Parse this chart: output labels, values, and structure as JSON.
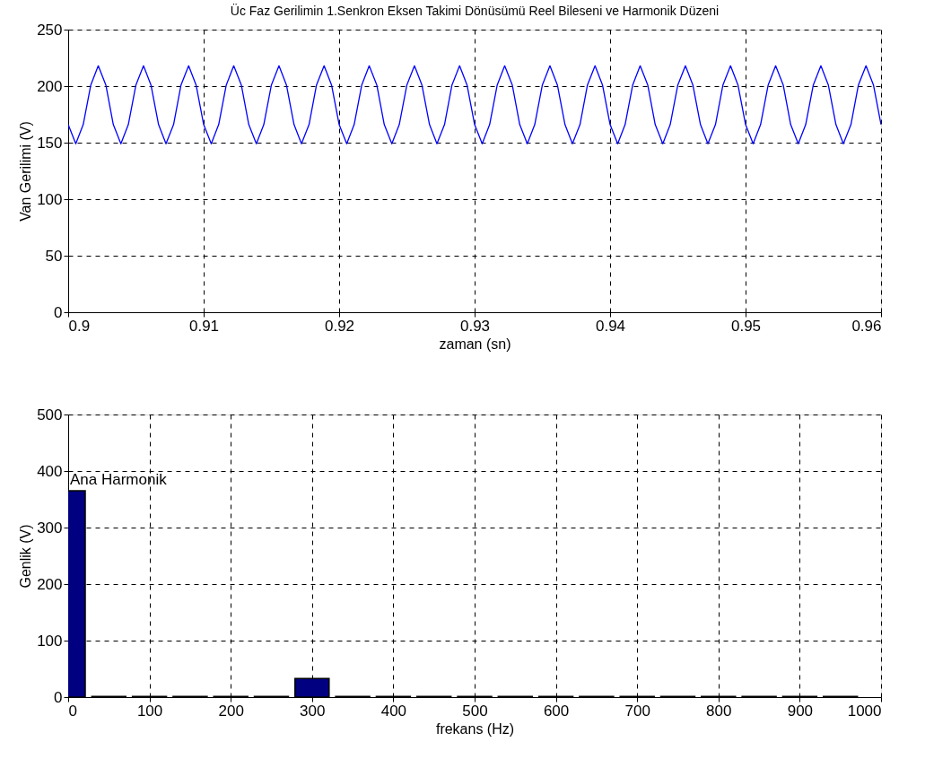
{
  "chart_data": [
    {
      "type": "line",
      "title": "Üc Faz Gerilimin 1.Senkron Eksen Takimi Dönüsümü Reel Bileseni ve Harmonik Düzeni",
      "xlabel": "zaman (sn)",
      "ylabel": "Van Gerilimi (V)",
      "x": [
        0.9,
        0.90056,
        0.90111,
        0.90167,
        0.90222,
        0.90278,
        0.90333,
        0.90389,
        0.90444,
        0.905,
        0.90556,
        0.90611,
        0.90667,
        0.90722,
        0.90778,
        0.90833,
        0.90889,
        0.90944,
        0.91,
        0.91056,
        0.91111,
        0.91167,
        0.91222,
        0.91278,
        0.91333,
        0.91389,
        0.91444,
        0.915,
        0.91556,
        0.91611,
        0.91667,
        0.91722,
        0.91778,
        0.91833,
        0.91889,
        0.91944,
        0.92,
        0.92056,
        0.92111,
        0.92167,
        0.92222,
        0.92278,
        0.92333,
        0.92389,
        0.92444,
        0.925,
        0.92556,
        0.92611,
        0.92667,
        0.92722,
        0.92778,
        0.92833,
        0.92889,
        0.92944,
        0.93,
        0.93056,
        0.93111,
        0.93167,
        0.93222,
        0.93278,
        0.93333,
        0.93389,
        0.93444,
        0.935,
        0.93556,
        0.93611,
        0.93667,
        0.93722,
        0.93778,
        0.93833,
        0.93889,
        0.93944,
        0.94,
        0.94056,
        0.94111,
        0.94167,
        0.94222,
        0.94278,
        0.94333,
        0.94389,
        0.94444,
        0.945,
        0.94556,
        0.94611,
        0.94667,
        0.94722,
        0.94778,
        0.94833,
        0.94889,
        0.94944,
        0.95,
        0.95056,
        0.95111,
        0.95167,
        0.95222,
        0.95278,
        0.95333,
        0.95389,
        0.95444,
        0.955,
        0.95556,
        0.95611,
        0.95667,
        0.95722,
        0.95778,
        0.95833,
        0.95889,
        0.95944,
        0.96
      ],
      "series": [
        {
          "color": "#0000ff",
          "values": [
            166,
            149,
            166,
            201,
            218,
            201,
            166,
            149,
            166,
            201,
            218,
            201,
            166,
            149,
            166,
            201,
            218,
            201,
            166,
            149,
            166,
            201,
            218,
            201,
            166,
            149,
            166,
            201,
            218,
            201,
            166,
            149,
            166,
            201,
            218,
            201,
            166,
            149,
            166,
            201,
            218,
            201,
            166,
            149,
            166,
            201,
            218,
            201,
            166,
            149,
            166,
            201,
            218,
            201,
            166,
            149,
            166,
            201,
            218,
            201,
            166,
            149,
            166,
            201,
            218,
            201,
            166,
            149,
            166,
            201,
            218,
            201,
            166,
            149,
            166,
            201,
            218,
            201,
            166,
            149,
            166,
            201,
            218,
            201,
            166,
            149,
            166,
            201,
            218,
            201,
            166,
            149,
            166,
            201,
            218,
            201,
            166,
            149,
            166,
            201,
            218,
            201,
            166,
            149,
            166,
            201,
            218,
            201,
            166
          ]
        }
      ],
      "xlim": [
        0.9,
        0.96
      ],
      "xticks": [
        0.9,
        0.91,
        0.92,
        0.93,
        0.94,
        0.95,
        0.96
      ],
      "ylim": [
        0,
        250
      ],
      "yticks": [
        0,
        50,
        100,
        150,
        200,
        250
      ],
      "grid": true,
      "line_style": "solid"
    },
    {
      "type": "bar",
      "xlabel": "frekans (Hz)",
      "ylabel": "Genlik (V)",
      "x": [
        0,
        50,
        100,
        150,
        200,
        250,
        300,
        350,
        400,
        450,
        500,
        550,
        600,
        650,
        700,
        750,
        800,
        850,
        900,
        950
      ],
      "series": [
        {
          "color": "#000080",
          "values": [
            365,
            1,
            1,
            1,
            1,
            1,
            33,
            1,
            1,
            1,
            1,
            1,
            1,
            1,
            1,
            1,
            1,
            1,
            1,
            1
          ]
        }
      ],
      "annotations": [
        {
          "text": "Ana Harmonik",
          "x": 0,
          "y": 365
        }
      ],
      "xlim": [
        0,
        1000
      ],
      "xticks": [
        0,
        100,
        200,
        300,
        400,
        500,
        600,
        700,
        800,
        900,
        1000
      ],
      "ylim": [
        0,
        500
      ],
      "yticks": [
        0,
        100,
        200,
        300,
        400,
        500
      ],
      "grid": true
    }
  ]
}
